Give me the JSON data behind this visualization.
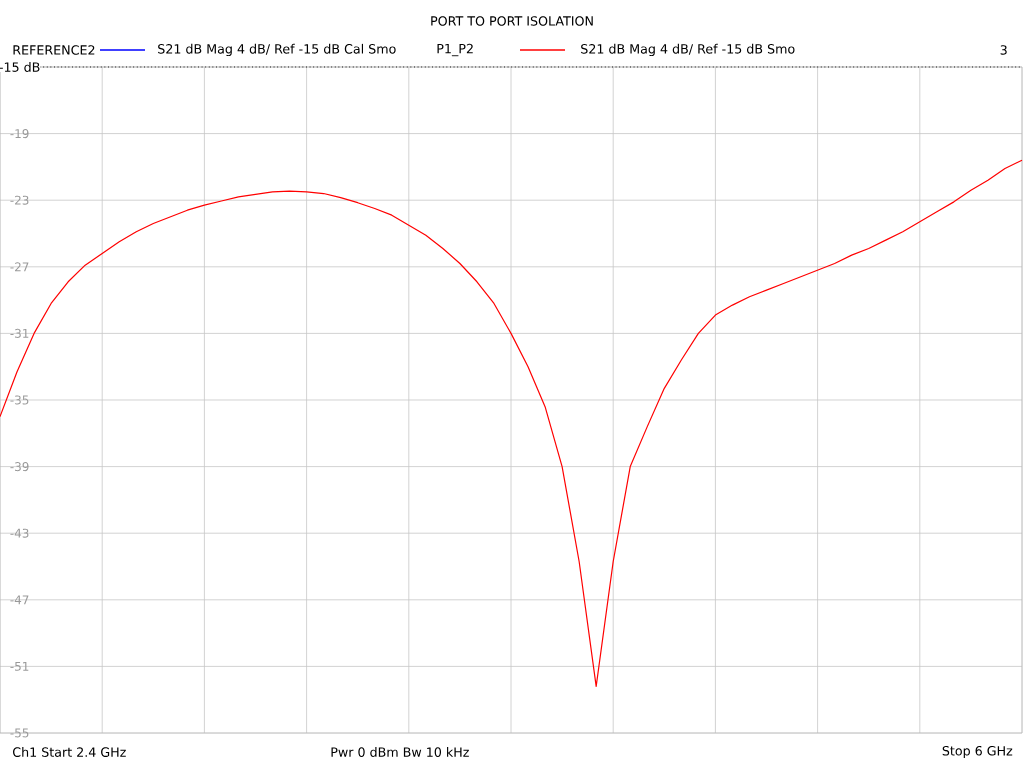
{
  "chart_data": {
    "type": "line",
    "title": "PORT TO PORT ISOLATION",
    "categories": [
      null,
      null,
      null,
      null,
      null,
      null,
      null,
      null,
      null,
      null,
      null,
      null,
      null,
      null,
      null,
      null,
      null,
      null,
      null,
      null,
      null,
      null,
      null,
      null,
      null,
      null,
      null,
      null,
      null,
      null,
      null,
      null,
      null,
      null,
      null,
      null,
      null,
      null,
      null,
      null,
      null,
      null,
      null,
      null,
      null,
      null,
      null,
      null,
      null,
      null,
      null,
      null,
      null,
      null,
      null,
      null,
      null,
      null,
      null,
      null,
      null
    ],
    "series": [
      {
        "name": "S21  dB Mag  4 dB/ Ref -15 dB  Cal Smo",
        "color": "#0000ff",
        "values": [
          null,
          null,
          null,
          null,
          null,
          null,
          null,
          null,
          null,
          null,
          null,
          null,
          null,
          null,
          null,
          null,
          null,
          null,
          null,
          null,
          null,
          null,
          null,
          null,
          null,
          null,
          null,
          null,
          null,
          null,
          null,
          null,
          null,
          null,
          null,
          null,
          null,
          null,
          null,
          null,
          null,
          null,
          null,
          null,
          null,
          null,
          null,
          null,
          null,
          null,
          null,
          null,
          null,
          null,
          null,
          null,
          null,
          null,
          null,
          null,
          null
        ]
      },
      {
        "name": "S21  dB Mag  4 dB/ Ref -15 dB  Smo",
        "color": "#ff0000",
        "values": [
          -36.0,
          -33.3,
          -31.0,
          -29.2,
          -27.9,
          -26.9,
          -26.2,
          -25.5,
          -24.9,
          -24.4,
          -24.0,
          -23.6,
          -23.3,
          -23.05,
          -22.8,
          -22.65,
          -22.5,
          -22.45,
          -22.5,
          -22.6,
          -22.85,
          -23.15,
          -23.5,
          -23.9,
          -24.5,
          -25.1,
          -25.9,
          -26.8,
          -27.9,
          -29.2,
          -31.0,
          -33.0,
          -35.4,
          -39.0,
          -44.7,
          -52.2,
          -44.7,
          -39.0,
          -36.6,
          -34.3,
          -32.6,
          -31.0,
          -29.9,
          -29.3,
          -28.8,
          -28.4,
          -28.0,
          -27.6,
          -27.2,
          -26.8,
          -26.3,
          -25.9,
          -25.4,
          -24.9,
          -24.3,
          -23.7,
          -23.1,
          -22.4,
          -21.8,
          -21.1,
          -20.6
        ]
      }
    ],
    "ylim": [
      -55,
      -15
    ],
    "yticks": [
      -55,
      -51,
      -47,
      -43,
      -39,
      -35,
      -31,
      -27,
      -23,
      -19,
      {
        "value": -15,
        "label": null
      }
    ],
    "grid": true,
    "legend": "top",
    "ref_lines": [
      {
        "axis": "y",
        "value": -15,
        "label": "-15 dB",
        "color": "#000000",
        "line_style": "dotted"
      }
    ],
    "annotations": [
      "REFERENCE2",
      "P1_P2",
      "3",
      "Ch1  Start  2.4 GHz",
      "Pwr  0 dBm  Bw  10 kHz",
      "Stop  6 GHz"
    ]
  }
}
